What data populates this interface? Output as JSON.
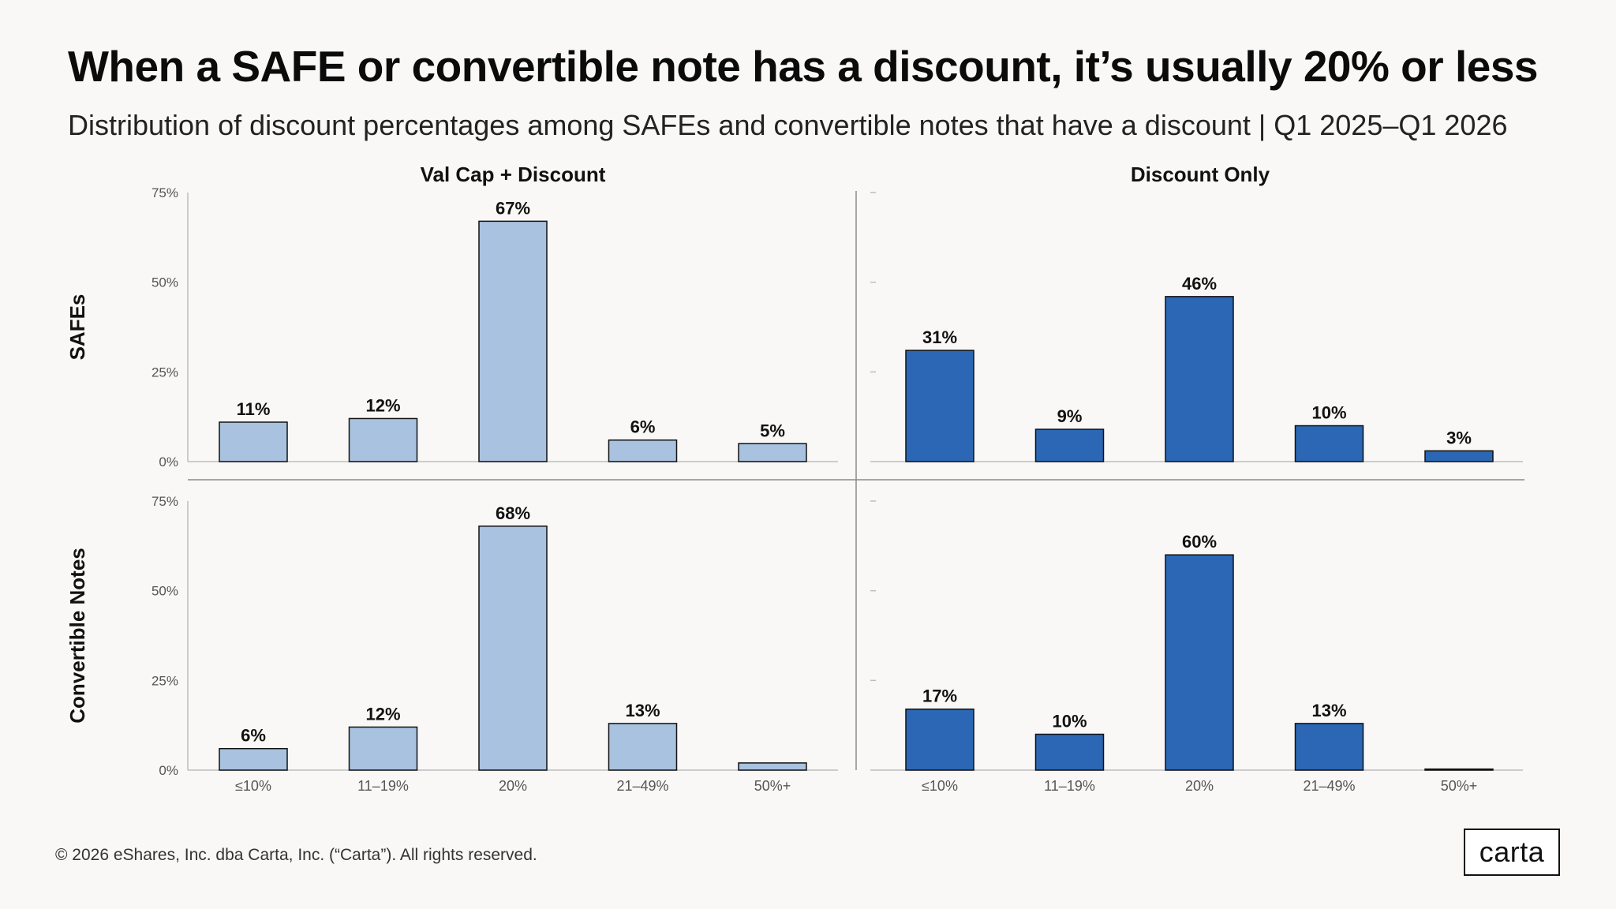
{
  "title": "When a SAFE or convertible note has a discount, it’s usually 20% or less",
  "subtitle": "Distribution of discount percentages among SAFEs and convertible notes that have a discount | Q1 2025–Q1 2026",
  "footer": "© 2026 eShares, Inc. dba Carta, Inc. (“Carta”). All rights reserved.",
  "logo": "carta",
  "colors": {
    "light_bar": "#a8c2df",
    "dark_bar": "#2b67b5",
    "bar_stroke": "#111111",
    "axis": "#bdbdbd",
    "divider": "#8a8a8a",
    "tick_text": "#555555"
  },
  "chart_data": {
    "type": "bar",
    "layout": "2x2 facet grid",
    "column_labels": [
      "Val Cap + Discount",
      "Discount Only"
    ],
    "row_labels": [
      "SAFEs",
      "Convertible Notes"
    ],
    "categories": [
      "≤10%",
      "11–19%",
      "20%",
      "21–49%",
      "50%+"
    ],
    "y_ticks": [
      "0%",
      "25%",
      "50%",
      "75%"
    ],
    "ylim": [
      0,
      75
    ],
    "panels": [
      {
        "row": "SAFEs",
        "column": "Val Cap + Discount",
        "values": [
          11,
          12,
          67,
          6,
          5
        ],
        "labels": [
          "11%",
          "12%",
          "67%",
          "6%",
          "5%"
        ]
      },
      {
        "row": "SAFEs",
        "column": "Discount Only",
        "values": [
          31,
          9,
          46,
          10,
          3
        ],
        "labels": [
          "31%",
          "9%",
          "46%",
          "10%",
          "3%"
        ]
      },
      {
        "row": "Convertible Notes",
        "column": "Val Cap + Discount",
        "values": [
          6,
          12,
          68,
          13,
          2
        ],
        "labels": [
          "6%",
          "12%",
          "68%",
          "13%",
          ""
        ]
      },
      {
        "row": "Convertible Notes",
        "column": "Discount Only",
        "values": [
          17,
          10,
          60,
          13,
          0.3
        ],
        "labels": [
          "17%",
          "10%",
          "60%",
          "13%",
          ""
        ]
      }
    ]
  }
}
